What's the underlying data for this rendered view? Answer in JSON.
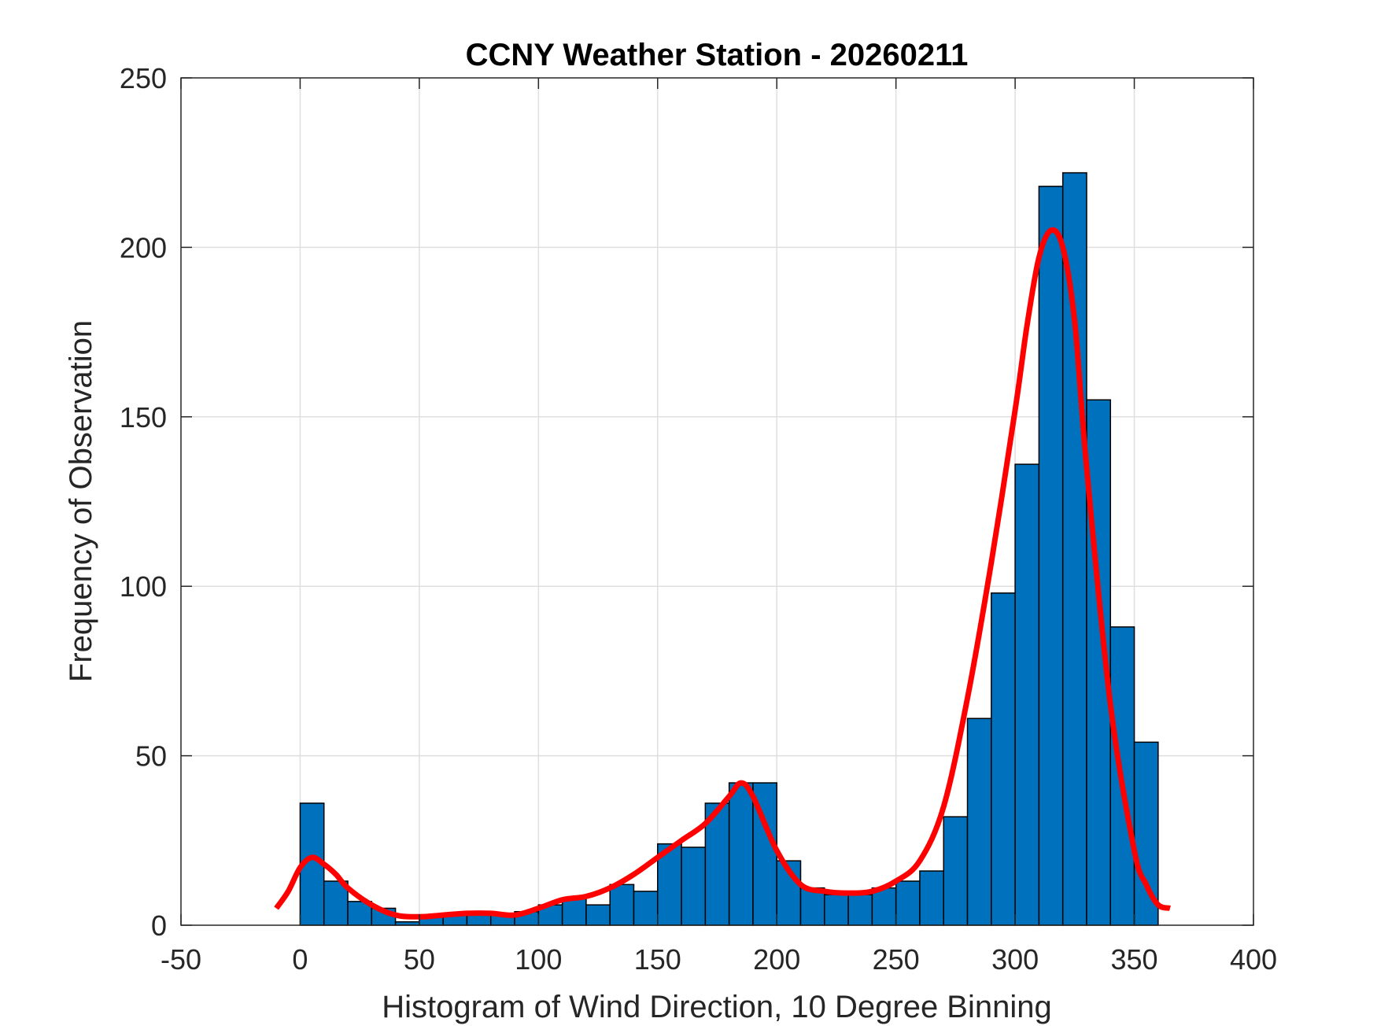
{
  "chart_data": {
    "type": "bar",
    "title": "CCNY Weather Station - 20260211",
    "xlabel": "Histogram of Wind Direction, 10 Degree Binning",
    "ylabel": "Frequency of Observation",
    "xlim": [
      -50,
      400
    ],
    "ylim": [
      0,
      250
    ],
    "xticks": [
      -50,
      0,
      50,
      100,
      150,
      200,
      250,
      300,
      350,
      400
    ],
    "yticks": [
      0,
      50,
      100,
      150,
      200,
      250
    ],
    "xtick_labels": [
      "-50",
      "0",
      "50",
      "100",
      "150",
      "200",
      "250",
      "300",
      "350",
      "400"
    ],
    "ytick_labels": [
      "0",
      "50",
      "100",
      "150",
      "200",
      "250"
    ],
    "grid": true,
    "bin_width": 10,
    "bin_edges_start": [
      0,
      10,
      20,
      30,
      40,
      50,
      60,
      70,
      80,
      90,
      100,
      110,
      120,
      130,
      140,
      150,
      160,
      170,
      180,
      190,
      200,
      210,
      220,
      230,
      240,
      250,
      260,
      270,
      280,
      290,
      300,
      310,
      320,
      330,
      340,
      350
    ],
    "values": [
      36,
      13,
      7,
      5,
      1,
      3,
      3,
      3,
      3,
      4,
      6,
      8,
      6,
      12,
      10,
      24,
      23,
      36,
      42,
      42,
      19,
      11,
      9,
      9,
      11,
      13,
      16,
      32,
      61,
      98,
      136,
      218,
      222,
      155,
      88,
      54
    ],
    "colors": {
      "bar_fill": "#0072BD",
      "bar_edge": "#000000",
      "curve": "#FF0000",
      "grid": "#DFDFDF",
      "axes": "#262626"
    },
    "series": [
      {
        "name": "histogram",
        "type": "bar",
        "values": [
          36,
          13,
          7,
          5,
          1,
          3,
          3,
          3,
          3,
          4,
          6,
          8,
          6,
          12,
          10,
          24,
          23,
          36,
          42,
          42,
          19,
          11,
          9,
          9,
          11,
          13,
          16,
          32,
          61,
          98,
          136,
          218,
          222,
          155,
          88,
          54
        ]
      },
      {
        "name": "density-fit",
        "type": "line",
        "x": [
          -10,
          -5,
          0,
          5,
          10,
          15,
          20,
          30,
          40,
          50,
          60,
          70,
          80,
          90,
          100,
          110,
          120,
          130,
          140,
          150,
          160,
          170,
          180,
          185,
          190,
          200,
          210,
          220,
          230,
          240,
          250,
          260,
          270,
          280,
          290,
          300,
          305,
          310,
          315,
          320,
          325,
          330,
          340,
          350,
          355,
          360,
          365
        ],
        "y": [
          5,
          10,
          17,
          20,
          18,
          15,
          11,
          6,
          3,
          2.5,
          3,
          3.5,
          3.5,
          3,
          5,
          7.5,
          8.5,
          11,
          15,
          20,
          25,
          30,
          38,
          42,
          38,
          22,
          12,
          10,
          9.5,
          10,
          13,
          19,
          35,
          67,
          107,
          152,
          177,
          197,
          205,
          200,
          178,
          135,
          65,
          22,
          12,
          6,
          5
        ]
      }
    ]
  }
}
